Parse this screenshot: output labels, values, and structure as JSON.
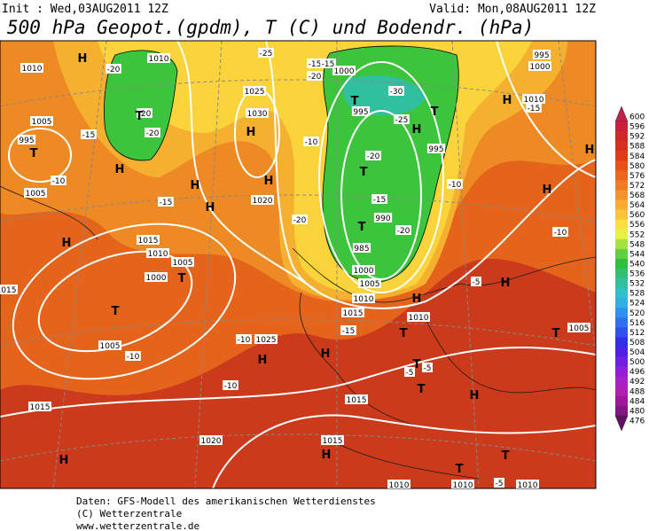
{
  "header": {
    "init": "Init : Wed,03AUG2011 12Z",
    "valid": "Valid: Mon,08AUG2011 12Z",
    "title": "500 hPa Geopot.(gpdm), T (C) und Bodendr. (hPa)"
  },
  "pressure_centers": [
    "H",
    "H",
    "H",
    "H",
    "H",
    "H",
    "T",
    "T",
    "T",
    "T",
    "H",
    "T",
    "T",
    "H",
    "T",
    "T",
    "H",
    "H",
    "H",
    "H",
    "T",
    "H",
    "H",
    "H",
    "T",
    "T",
    "H",
    "T",
    "H",
    "H",
    "T",
    "T"
  ],
  "isobar_labels": [
    "1010",
    "995",
    "1005",
    "1005",
    "1010",
    "1000",
    "1025",
    "1030",
    "1020",
    "995",
    "995",
    "990",
    "985",
    "1000",
    "1005",
    "1010",
    "1015",
    "1010",
    "1005",
    "1000",
    "1005",
    "1025",
    "1015",
    "1010",
    "1015",
    "1020",
    "1015",
    "1015",
    "1010",
    "1010",
    "1010",
    "1005",
    "1010",
    "1000",
    "995",
    "1015"
  ],
  "isotherm_labels": [
    "-20",
    "-15",
    "-10",
    "-15",
    "-20",
    "-25",
    "-15",
    "-15",
    "-20",
    "-30",
    "-25",
    "-20",
    "-15",
    "-20",
    "-10",
    "-10",
    "-15",
    "-10",
    "-10",
    "-10",
    "-15",
    "-5",
    "-5",
    "-5",
    "-5",
    "-10",
    "-20",
    "-20"
  ],
  "colorbar": {
    "levels": [
      600,
      596,
      592,
      588,
      584,
      580,
      576,
      572,
      568,
      564,
      560,
      556,
      552,
      548,
      544,
      540,
      536,
      532,
      528,
      524,
      520,
      516,
      512,
      508,
      504,
      500,
      496,
      492,
      488,
      484,
      480,
      476
    ],
    "colors": [
      "#c0204a",
      "#c8203a",
      "#d02828",
      "#d83020",
      "#e03c1c",
      "#e8501c",
      "#ec6420",
      "#f07c24",
      "#f4942c",
      "#f8ac30",
      "#fcc438",
      "#fce040",
      "#e8f040",
      "#a8e040",
      "#60d040",
      "#30c040",
      "#30c070",
      "#30c0a0",
      "#30c0c8",
      "#30b0e0",
      "#3090f0",
      "#3070f0",
      "#3050f0",
      "#3030e8",
      "#5020e8",
      "#7020e0",
      "#9020d8",
      "#a820c8",
      "#b020b0",
      "#a01898",
      "#801880",
      "#601060"
    ]
  },
  "footer": {
    "line1": "Daten: GFS-Modell des amerikanischen Wetterdienstes",
    "line2": "(C) Wetterzentrale",
    "line3": "www.wetterzentrale.de"
  }
}
